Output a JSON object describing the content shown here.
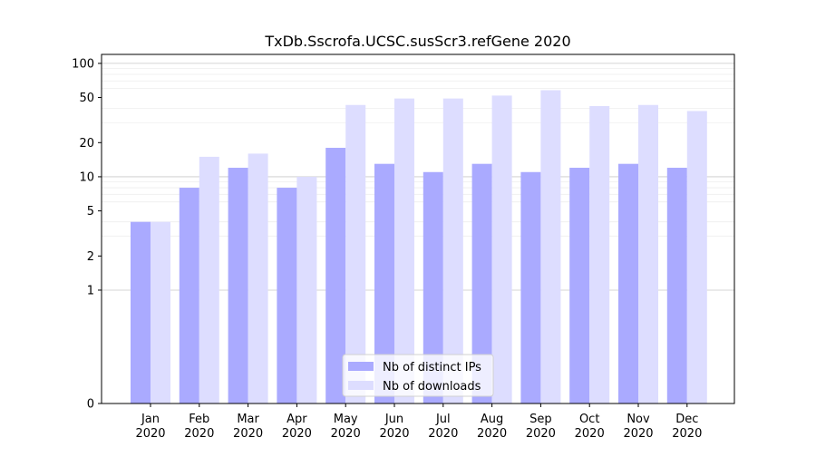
{
  "chart_data": {
    "type": "bar",
    "title": "TxDb.Sscrofa.UCSC.susScr3.refGene 2020",
    "xlabel": "",
    "ylabel": "",
    "y_scale": "symlog",
    "ylim": [
      0,
      120
    ],
    "yticks": [
      0,
      1,
      2,
      5,
      10,
      20,
      50,
      100
    ],
    "ytick_labels": [
      "0",
      "1",
      "2",
      "5",
      "10",
      "20",
      "50",
      "100"
    ],
    "grid": "y-major-and-minor",
    "legend_position": "bottom-center",
    "categories": [
      [
        "Jan",
        "2020"
      ],
      [
        "Feb",
        "2020"
      ],
      [
        "Mar",
        "2020"
      ],
      [
        "Apr",
        "2020"
      ],
      [
        "May",
        "2020"
      ],
      [
        "Jun",
        "2020"
      ],
      [
        "Jul",
        "2020"
      ],
      [
        "Aug",
        "2020"
      ],
      [
        "Sep",
        "2020"
      ],
      [
        "Oct",
        "2020"
      ],
      [
        "Nov",
        "2020"
      ],
      [
        "Dec",
        "2020"
      ]
    ],
    "series": [
      {
        "name": "Nb of distinct IPs",
        "color": "#aaaaff",
        "values": [
          4,
          8,
          12,
          8,
          18,
          13,
          11,
          13,
          11,
          12,
          13,
          12
        ]
      },
      {
        "name": "Nb of downloads",
        "color": "#ddddff",
        "values": [
          4,
          15,
          16,
          10,
          43,
          49,
          49,
          52,
          58,
          42,
          43,
          38
        ]
      }
    ]
  }
}
